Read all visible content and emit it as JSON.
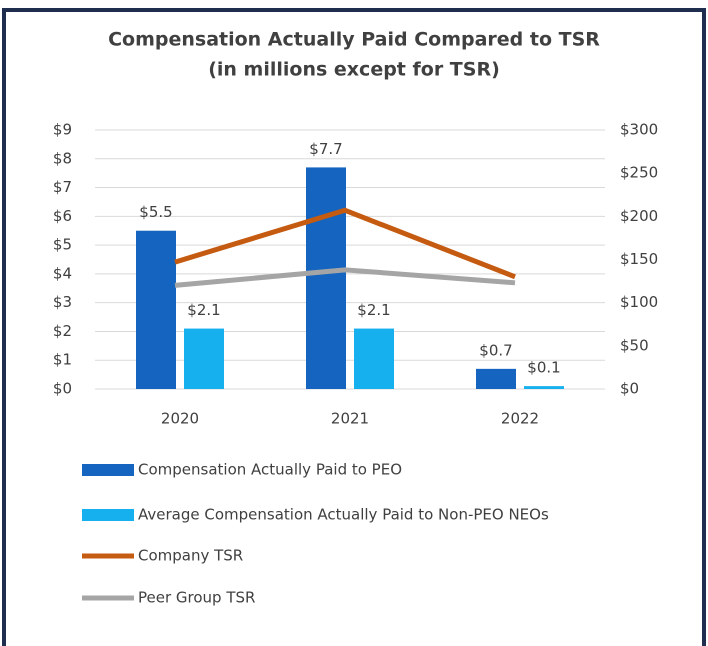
{
  "chart_data": {
    "type": "bar-line",
    "title": "Compensation Actually Paid Compared to TSR",
    "subtitle": "(in millions except for TSR)",
    "categories": [
      "2020",
      "2021",
      "2022"
    ],
    "series": [
      {
        "name": "Compensation Actually Paid to PEO",
        "type": "bar",
        "color": "#1565c0",
        "values": [
          5.5,
          7.7,
          0.7
        ],
        "value_labels": [
          "$5.5",
          "$7.7",
          "$0.7"
        ]
      },
      {
        "name": "Average Compensation Actually Paid to Non-PEO NEOs",
        "type": "bar",
        "color": "#17b0ee",
        "values": [
          2.1,
          2.1,
          0.1
        ],
        "value_labels": [
          "$2.1",
          "$2.1",
          "$0.1"
        ]
      },
      {
        "name": "Company TSR",
        "type": "line",
        "axis": "y2",
        "color": "#c55a11",
        "values": [
          147,
          207,
          130
        ]
      },
      {
        "name": "Peer Group TSR",
        "type": "line",
        "axis": "y2",
        "color": "#a5a5a5",
        "values": [
          120,
          138,
          123
        ]
      }
    ],
    "ylim": [
      0,
      9
    ],
    "yticks": [
      {
        "value": 0,
        "label": "$0"
      },
      {
        "value": 1,
        "label": "$1"
      },
      {
        "value": 2,
        "label": "$2"
      },
      {
        "value": 3,
        "label": "$3"
      },
      {
        "value": 4,
        "label": "$4"
      },
      {
        "value": 5,
        "label": "$5"
      },
      {
        "value": 6,
        "label": "$6"
      },
      {
        "value": 7,
        "label": "$7"
      },
      {
        "value": 8,
        "label": "$8"
      },
      {
        "value": 9,
        "label": "$9"
      }
    ],
    "y2lim": [
      0,
      300
    ],
    "y2ticks": [
      {
        "value": 0,
        "label": "$0"
      },
      {
        "value": 50,
        "label": "$50"
      },
      {
        "value": 100,
        "label": "$100"
      },
      {
        "value": 150,
        "label": "$150"
      },
      {
        "value": 200,
        "label": "$200"
      },
      {
        "value": 250,
        "label": "$250"
      },
      {
        "value": 300,
        "label": "$300"
      }
    ],
    "grid": true
  }
}
